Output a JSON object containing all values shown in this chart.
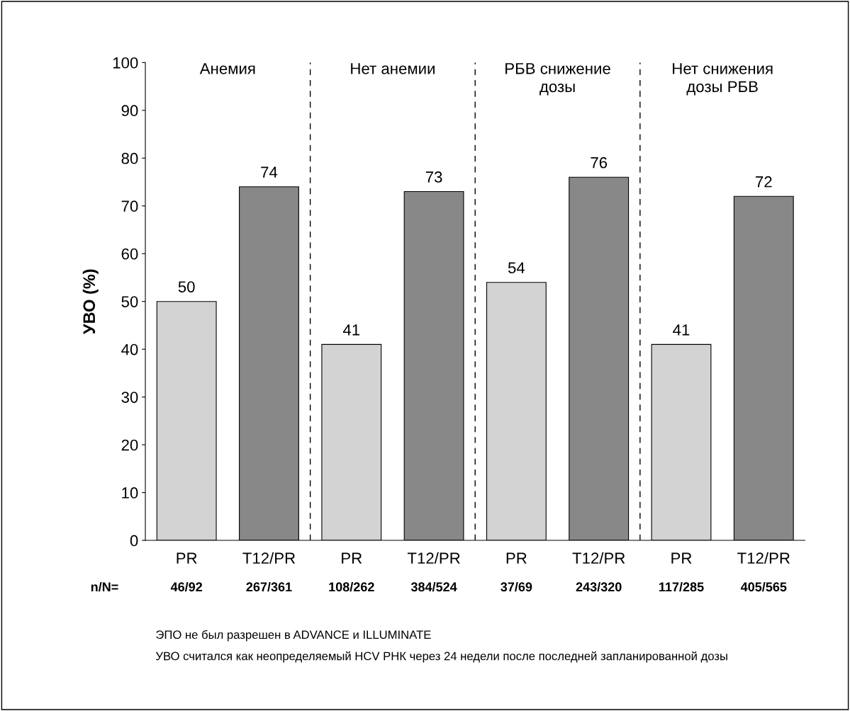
{
  "chart_data": {
    "type": "bar",
    "ylabel": "УВО (%)",
    "categories": [
      "PR",
      "T12/PR",
      "PR",
      "T12/PR",
      "PR",
      "T12/PR",
      "PR",
      "T12/PR"
    ],
    "values": [
      50,
      74,
      41,
      73,
      54,
      76,
      41,
      72
    ],
    "colors": [
      "#d3d3d3",
      "#888888",
      "#d3d3d3",
      "#888888",
      "#d3d3d3",
      "#888888",
      "#d3d3d3",
      "#888888"
    ],
    "data_labels": true,
    "ylim": [
      0,
      100
    ],
    "yticks": [
      0,
      10,
      20,
      30,
      40,
      50,
      60,
      70,
      80,
      90,
      100
    ],
    "grid": false,
    "legend": false,
    "annotations": [
      "Анемия",
      "Нет анемии",
      "РБВ снижение\nдозы",
      "Нет снижения\nдозы РБВ",
      "n/N=",
      "46/92",
      "267/361",
      "108/262",
      "384/524",
      "37/69",
      "243/320",
      "117/285",
      "405/565",
      "ЭПО не был разрешен в ADVANCE и ILLUMINATE",
      "УВО считался как неопределяемый HCV РНК через 24 недели после последней запланированной дозы"
    ]
  }
}
